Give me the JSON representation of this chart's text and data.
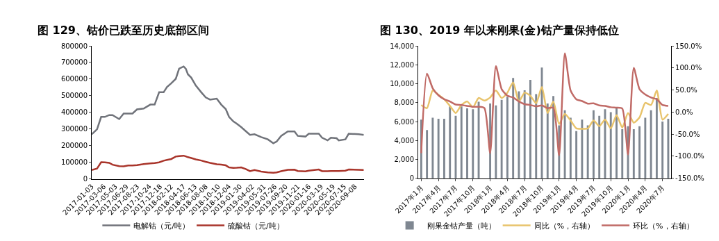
{
  "chart_data": [
    {
      "type": "line",
      "title": "图 129、钴价已跌至历史底部区间",
      "legend": "bottom",
      "marker": "none",
      "line_style": "solid",
      "xlim": [
        "2017-01-03",
        "2020-10-23"
      ],
      "xticks": [
        "2017-01-03",
        "2017-03-06",
        "2017-05-03",
        "2017-06-29",
        "2017-08-23",
        "2017-10-24",
        "2017-12-18",
        "2018-02-12",
        "2018-04-17",
        "2018-06-13",
        "2018-08-08",
        "2018-10-10",
        "2018-12-04",
        "2019-01-30",
        "2019-04-02",
        "2019-05-31",
        "2019-07-26",
        "2019-09-20",
        "2019-11-21",
        "2020-01-16",
        "2020-03-19",
        "2020-05-19",
        "2020-07-15",
        "2020-09-08"
      ],
      "ylim": [
        0,
        800000
      ],
      "yticks": [
        0,
        100000,
        200000,
        300000,
        400000,
        500000,
        600000,
        700000,
        800000
      ],
      "x": [
        "2017-01-03",
        "2017-01-30",
        "2017-02-20",
        "2017-03-11",
        "2017-04-02",
        "2017-04-19",
        "2017-05-23",
        "2017-06-15",
        "2017-07-08",
        "2017-07-30",
        "2017-08-22",
        "2017-09-25",
        "2017-10-29",
        "2017-11-20",
        "2017-12-13",
        "2018-01-05",
        "2018-01-22",
        "2018-02-13",
        "2018-03-08",
        "2018-03-25",
        "2018-04-17",
        "2018-04-28",
        "2018-05-09",
        "2018-05-26",
        "2018-06-18",
        "2018-07-16",
        "2018-08-08",
        "2018-08-30",
        "2018-10-03",
        "2018-10-26",
        "2018-11-18",
        "2018-12-05",
        "2018-12-27",
        "2019-01-13",
        "2019-02-05",
        "2019-02-28",
        "2019-03-22",
        "2019-04-14",
        "2019-05-18",
        "2019-06-21",
        "2019-07-19",
        "2019-08-05",
        "2019-08-28",
        "2019-10-01",
        "2019-11-04",
        "2019-11-21",
        "2019-12-30",
        "2020-01-16",
        "2020-03-07",
        "2020-03-24",
        "2020-04-21",
        "2020-05-08",
        "2020-06-06",
        "2020-06-17",
        "2020-07-21",
        "2020-08-07",
        "2020-09-27",
        "2020-10-23"
      ],
      "series": [
        {
          "name": "电解钴（元/吨）",
          "color": "#70737a",
          "values": [
            269000,
            299000,
            373000,
            373000,
            384000,
            384000,
            360000,
            393000,
            393000,
            393000,
            418000,
            423000,
            447000,
            447000,
            521000,
            521000,
            552000,
            575000,
            602000,
            663000,
            676000,
            663000,
            629000,
            609000,
            562000,
            521000,
            490000,
            477000,
            483000,
            447000,
            420000,
            373000,
            346000,
            333000,
            312000,
            288000,
            265000,
            269000,
            252000,
            238000,
            215000,
            225000,
            259000,
            286000,
            286000,
            259000,
            255000,
            272000,
            272000,
            248000,
            232000,
            248000,
            245000,
            232000,
            238000,
            272000,
            269000,
            265000
          ]
        },
        {
          "name": "硫酸钴（元/吨）",
          "color": "#a9352b",
          "values": [
            54000,
            63000,
            101000,
            100000,
            97000,
            86000,
            77000,
            76000,
            81000,
            81000,
            83000,
            90000,
            94000,
            96000,
            100000,
            110000,
            115000,
            120000,
            135000,
            138000,
            140000,
            136000,
            131000,
            126000,
            118000,
            111000,
            103000,
            97000,
            89000,
            86000,
            82000,
            70000,
            67000,
            68000,
            70000,
            60000,
            47000,
            54000,
            45000,
            40000,
            38000,
            40000,
            47000,
            55000,
            56000,
            48000,
            46000,
            50000,
            57000,
            47000,
            47000,
            48000,
            48000,
            48000,
            50000,
            57000,
            55000,
            54000
          ]
        }
      ]
    },
    {
      "type": "bar",
      "title": "图 130、2019 年以来刚果(金)钴产量保持低位",
      "legend": "bottom",
      "marker": "none",
      "line_style": "solid",
      "categories": [
        "2017年1月",
        null,
        null,
        "2017年4月",
        null,
        null,
        "2017年7月",
        null,
        null,
        "2017年10月",
        null,
        null,
        "2018年1月",
        null,
        null,
        "2018年4月",
        null,
        null,
        "2018年7月",
        null,
        null,
        "2018年10月",
        null,
        null,
        "2019年1月",
        null,
        null,
        "2019年4月",
        null,
        null,
        "2019年7月",
        null,
        null,
        "2019年10月",
        null,
        null,
        "2020年1月",
        null,
        null,
        "2020年4月",
        null,
        null,
        "2020年7月",
        null
      ],
      "ylim": [
        0,
        14000
      ],
      "yticks": [
        0,
        {
          "value": 2000,
          "label": "2,000"
        },
        {
          "value": 4000,
          "label": "4,000"
        },
        {
          "value": 6000,
          "label": "6,000"
        },
        {
          "value": 8000,
          "label": "8,000"
        },
        {
          "value": 10000,
          "label": "10,000"
        },
        {
          "value": 12000,
          "label": "12,000"
        },
        {
          "value": 14000,
          "label": "14,000"
        }
      ],
      "y2lim": [
        -150,
        150
      ],
      "y2ticks": [
        {
          "value": -150,
          "label": "-150.0%"
        },
        {
          "value": -100,
          "label": "-100.0%"
        },
        {
          "value": -50,
          "label": "-50.0%"
        },
        {
          "value": 0,
          "label": "0.0%"
        },
        {
          "value": 50,
          "label": "50.0%"
        },
        {
          "value": 100,
          "label": "100.0%"
        },
        {
          "value": 150,
          "label": "150.0%"
        }
      ],
      "series": [
        {
          "name": "刚果金钴产量（吨）",
          "type": "bar",
          "color": "#7f8791",
          "values": [
            6200,
            5100,
            6400,
            6300,
            6300,
            7600,
            6600,
            7600,
            7400,
            7300,
            8100,
            null,
            7900,
            7700,
            8300,
            8600,
            10600,
            9200,
            9300,
            10400,
            8900,
            11700,
            7900,
            8700,
            5600,
            7200,
            6400,
            5000,
            6200,
            5600,
            7200,
            6600,
            7300,
            7000,
            7400,
            5200,
            5500,
            5200,
            5500,
            6400,
            7200,
            8500,
            6000,
            6300
          ]
        },
        {
          "name": "同比（%，右轴）",
          "type": "line",
          "axis": "y2",
          "color": "#e8c36b",
          "values": [
            16,
            9,
            49,
            39,
            29,
            14,
            -2,
            16,
            24,
            11,
            32,
            26,
            33,
            49,
            32,
            44,
            67,
            24,
            44,
            37,
            20,
            57,
            -2,
            24,
            -27,
            -4,
            -19,
            -37,
            -38,
            -37,
            -19,
            -32,
            -17,
            -37,
            -7,
            -35,
            -2,
            -24,
            -12,
            21,
            16,
            49,
            -17,
            -4
          ]
        },
        {
          "name": "环比（%，右轴）",
          "type": "line",
          "axis": "y2",
          "color": "#c06a66",
          "values": [
            -93,
            87,
            54,
            38,
            29,
            24,
            17,
            16,
            14,
            12,
            12,
            9,
            -93,
            104,
            52,
            37,
            33,
            24,
            18,
            16,
            13,
            15,
            9,
            10,
            -98,
            133,
            49,
            29,
            25,
            19,
            20,
            15,
            14,
            11,
            10,
            8,
            -96,
            100,
            52,
            40,
            33,
            29,
            16,
            14
          ]
        }
      ]
    }
  ]
}
